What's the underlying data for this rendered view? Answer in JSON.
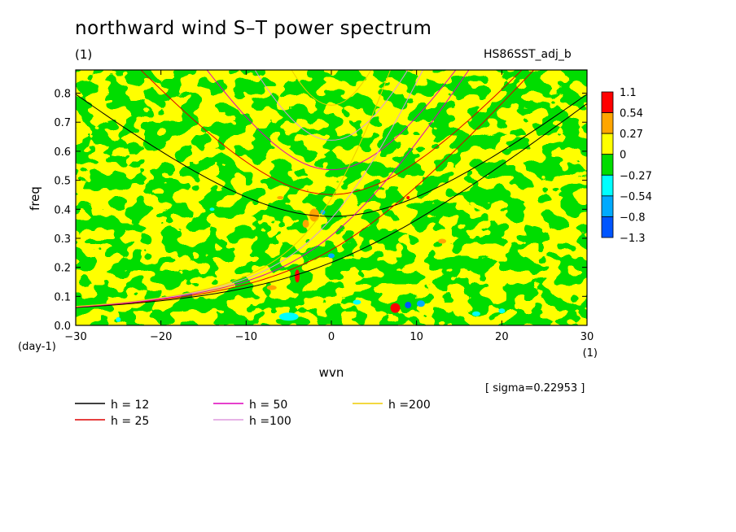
{
  "title": "northward wind S–T power spectrum",
  "subtitle": "(1)",
  "run_name": "HS86SST_adj_b",
  "sigma_note": "[ sigma=0.22953 ]",
  "chart_data": {
    "type": "heatmap",
    "xlabel": "wvn",
    "ylabel": "freq",
    "x_unit": "(1)",
    "y_unit": "(day-1)",
    "xlim": [
      -30,
      30
    ],
    "ylim": [
      0,
      0.88
    ],
    "x_ticks": [
      -30,
      -20,
      -10,
      0,
      10,
      20,
      30
    ],
    "x_tick_labels": [
      "−30",
      "−20",
      "−10",
      "0",
      "10",
      "20",
      "30"
    ],
    "y_ticks": [
      0,
      0.1,
      0.2,
      0.3,
      0.4,
      0.5,
      0.6,
      0.7,
      0.8
    ],
    "y_tick_labels": [
      "0.0",
      "0.1",
      "0.2",
      "0.3",
      "0.4",
      "0.5",
      "0.6",
      "0.7",
      "0.8"
    ],
    "colorbar": {
      "labels": [
        "1.1",
        "0.54",
        "0.27",
        "0",
        "−0.27",
        "−0.54",
        "−0.8",
        "−1.3"
      ],
      "colors": [
        "#ff0000",
        "#ffa500",
        "#ffff00",
        "#00dd00",
        "#00ffff",
        "#00aaff",
        "#0055ff"
      ]
    },
    "dispersion_curves": [
      {
        "label": "h = 12",
        "h": 12,
        "color": "#000000"
      },
      {
        "label": "h = 25",
        "h": 25,
        "color": "#dd0000"
      },
      {
        "label": "h = 50",
        "h": 50,
        "color": "#dd00bb"
      },
      {
        "label": "h =100",
        "h": 100,
        "color": "#dd99dd"
      },
      {
        "label": "h =200",
        "h": 200,
        "color": "#eecc00"
      }
    ],
    "grid": false,
    "legend_placement": "bottom"
  }
}
